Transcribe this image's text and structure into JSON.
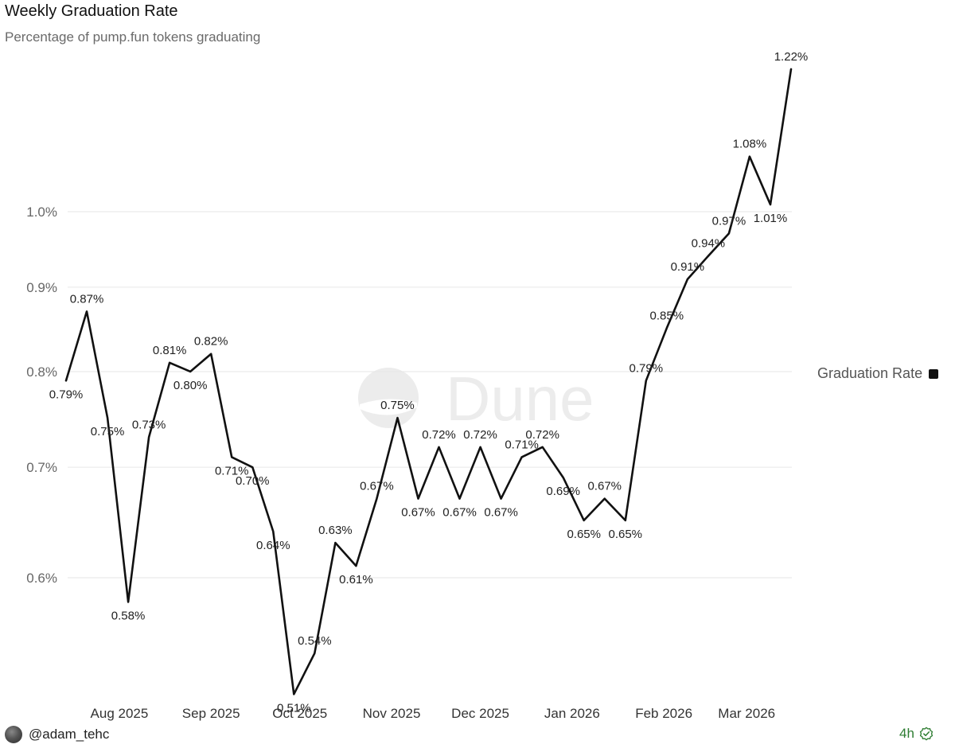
{
  "header": {
    "title": "Weekly Graduation Rate",
    "subtitle": "Percentage of pump.fun tokens graduating"
  },
  "watermark": "Dune",
  "legend": {
    "label": "Graduation Rate",
    "placement": "right"
  },
  "footer": {
    "username": "@adam_tehc",
    "time": "4h"
  },
  "colors": {
    "line": "#111111",
    "grid": "#e6e6e6",
    "status": "#2e7d32"
  },
  "icons": {
    "avatar": "user-avatar",
    "verified": "check-circle-icon"
  },
  "chart_data": {
    "type": "line",
    "title": "Weekly Graduation Rate",
    "subtitle": "Percentage of pump.fun tokens graduating",
    "xlabel": "",
    "ylabel": "",
    "y_scale": "log",
    "ylim": [
      0.5,
      1.25
    ],
    "y_ticks": [
      0.6,
      0.7,
      0.8,
      0.9,
      1.0
    ],
    "y_tick_labels": [
      "0.6%",
      "0.7%",
      "0.8%",
      "0.9%",
      "1.0%"
    ],
    "grid": true,
    "x_ticks": [
      {
        "label": "Aug 2025",
        "date": "2025-08-01"
      },
      {
        "label": "Sep 2025",
        "date": "2025-09-01"
      },
      {
        "label": "Oct 2025",
        "date": "2025-10-01"
      },
      {
        "label": "Nov 2025",
        "date": "2025-11-01"
      },
      {
        "label": "Dec 2025",
        "date": "2025-12-01"
      },
      {
        "label": "Jan 2026",
        "date": "2026-01-01"
      },
      {
        "label": "Feb 2026",
        "date": "2026-02-01"
      },
      {
        "label": "Mar 2026",
        "date": "2026-03-01"
      }
    ],
    "series": [
      {
        "name": "Graduation Rate",
        "points": [
          {
            "date": "2025-07-14",
            "value": 0.79,
            "label": "0.79%"
          },
          {
            "date": "2025-07-21",
            "value": 0.87,
            "label": "0.87%"
          },
          {
            "date": "2025-07-28",
            "value": 0.75,
            "label": "0.75%"
          },
          {
            "date": "2025-08-04",
            "value": 0.58,
            "label": "0.58%"
          },
          {
            "date": "2025-08-11",
            "value": 0.73,
            "label": "0.73%"
          },
          {
            "date": "2025-08-18",
            "value": 0.81,
            "label": "0.81%"
          },
          {
            "date": "2025-08-25",
            "value": 0.8,
            "label": "0.80%"
          },
          {
            "date": "2025-09-01",
            "value": 0.82,
            "label": "0.82%"
          },
          {
            "date": "2025-09-08",
            "value": 0.71,
            "label": "0.71%"
          },
          {
            "date": "2025-09-15",
            "value": 0.7,
            "label": "0.70%"
          },
          {
            "date": "2025-09-22",
            "value": 0.64,
            "label": "0.64%"
          },
          {
            "date": "2025-09-29",
            "value": 0.51,
            "label": "0.51%"
          },
          {
            "date": "2025-10-06",
            "value": 0.54,
            "label": "0.54%"
          },
          {
            "date": "2025-10-13",
            "value": 0.63,
            "label": "0.63%"
          },
          {
            "date": "2025-10-20",
            "value": 0.61,
            "label": "0.61%"
          },
          {
            "date": "2025-10-27",
            "value": 0.67,
            "label": "0.67%"
          },
          {
            "date": "2025-11-03",
            "value": 0.75,
            "label": "0.75%"
          },
          {
            "date": "2025-11-10",
            "value": 0.67,
            "label": "0.67%"
          },
          {
            "date": "2025-11-17",
            "value": 0.72,
            "label": "0.72%"
          },
          {
            "date": "2025-11-24",
            "value": 0.67,
            "label": "0.67%"
          },
          {
            "date": "2025-12-01",
            "value": 0.72,
            "label": "0.72%"
          },
          {
            "date": "2025-12-08",
            "value": 0.67,
            "label": "0.67%"
          },
          {
            "date": "2025-12-15",
            "value": 0.71,
            "label": "0.71%"
          },
          {
            "date": "2025-12-22",
            "value": 0.72,
            "label": "0.72%"
          },
          {
            "date": "2025-12-29",
            "value": 0.69,
            "label": "0.69%"
          },
          {
            "date": "2026-01-05",
            "value": 0.65,
            "label": "0.65%"
          },
          {
            "date": "2026-01-12",
            "value": 0.67,
            "label": "0.67%"
          },
          {
            "date": "2026-01-19",
            "value": 0.65,
            "label": "0.65%"
          },
          {
            "date": "2026-01-26",
            "value": 0.79,
            "label": "0.79%"
          },
          {
            "date": "2026-02-02",
            "value": 0.85,
            "label": "0.85%"
          },
          {
            "date": "2026-02-09",
            "value": 0.91,
            "label": "0.91%"
          },
          {
            "date": "2026-02-16",
            "value": 0.94,
            "label": "0.94%"
          },
          {
            "date": "2026-02-23",
            "value": 0.97,
            "label": "0.97%"
          },
          {
            "date": "2026-03-02",
            "value": 1.08,
            "label": "1.08%"
          },
          {
            "date": "2026-03-09",
            "value": 1.01,
            "label": "1.01%"
          },
          {
            "date": "2026-03-16",
            "value": 1.22,
            "label": "1.22%"
          }
        ]
      }
    ]
  }
}
